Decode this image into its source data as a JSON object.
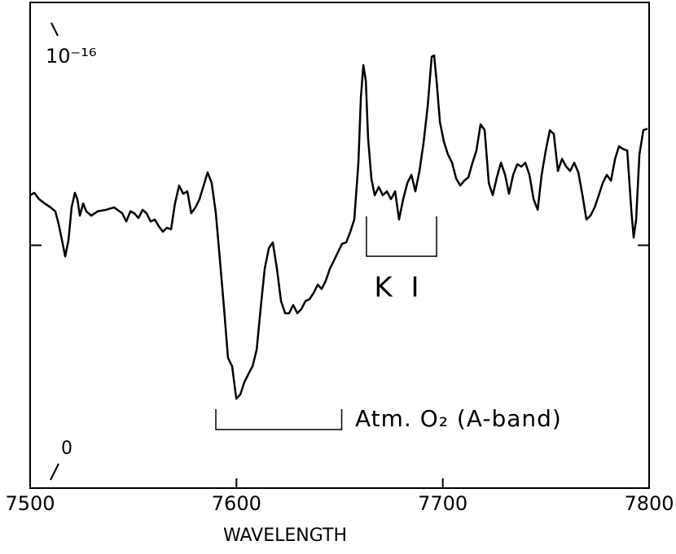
{
  "chart_data": {
    "type": "line",
    "x_label": "WAVELENGTH",
    "color": "#000000",
    "xlim": [
      7500,
      7800
    ],
    "xticks": [
      7500,
      7600,
      7700,
      7800
    ],
    "ylim": [
      0,
      1e-16
    ],
    "yticks": [
      0,
      {
        "value": 1e-16,
        "label": "10⁻¹⁶"
      }
    ],
    "y_minor_ticks": [
      5e-17
    ],
    "annotations": [
      {
        "text": "K I",
        "x": [
          7663,
          7697
        ]
      },
      {
        "text": "Atm. O₂ (A-band)",
        "x": [
          7590,
          7651
        ]
      }
    ],
    "x": [
      7500.0,
      7502.0,
      7504.3,
      7507.1,
      7509.9,
      7512.2,
      7513.8,
      7515.4,
      7517.0,
      7518.6,
      7520.1,
      7521.7,
      7522.9,
      7524.1,
      7525.7,
      7527.2,
      7529.6,
      7532.8,
      7536.7,
      7540.7,
      7544.6,
      7546.6,
      7548.6,
      7550.5,
      7552.5,
      7554.5,
      7556.4,
      7558.4,
      7560.4,
      7562.4,
      7564.3,
      7566.3,
      7568.3,
      7570.2,
      7572.2,
      7574.2,
      7576.2,
      7578.1,
      7580.1,
      7582.1,
      7584.1,
      7586.0,
      7588.0,
      7590.0,
      7592.0,
      7594.0,
      7595.9,
      7597.9,
      7599.9,
      7601.9,
      7603.8,
      7605.8,
      7607.8,
      7609.8,
      7611.7,
      7613.7,
      7615.7,
      7617.6,
      7619.6,
      7621.6,
      7623.6,
      7625.5,
      7627.5,
      7629.5,
      7631.5,
      7633.4,
      7635.4,
      7637.4,
      7639.4,
      7641.3,
      7643.3,
      7645.3,
      7647.3,
      7649.2,
      7651.2,
      7653.2,
      7655.2,
      7657.1,
      7659.1,
      7660.3,
      7661.5,
      7662.7,
      7663.8,
      7665.4,
      7667.0,
      7669.0,
      7670.9,
      7672.9,
      7674.9,
      7676.9,
      7678.8,
      7680.8,
      7682.8,
      7684.8,
      7686.7,
      7688.7,
      7690.7,
      7692.7,
      7694.6,
      7695.8,
      7697.0,
      7698.6,
      7700.6,
      7702.5,
      7704.5,
      7706.5,
      7708.5,
      7710.4,
      7712.4,
      7714.4,
      7716.3,
      7718.3,
      7720.3,
      7722.3,
      7724.2,
      7726.2,
      7728.2,
      7730.2,
      7732.1,
      7734.1,
      7736.1,
      7738.1,
      7740.0,
      7742.0,
      7744.0,
      7746.0,
      7747.9,
      7749.9,
      7751.9,
      7753.8,
      7755.8,
      7757.8,
      7759.8,
      7761.7,
      7763.7,
      7765.7,
      7767.7,
      7769.6,
      7771.6,
      7773.6,
      7775.6,
      7777.5,
      7779.5,
      7781.5,
      7783.5,
      7785.4,
      7787.4,
      7789.4,
      7791.4,
      7792.5,
      7793.7,
      7795.3,
      7797.2,
      7799.2
    ],
    "values": [
      6.03e-17,
      6.08e-17,
      5.95e-17,
      5.86e-17,
      5.78e-17,
      5.7e-17,
      5.44e-17,
      5.11e-17,
      4.77e-17,
      5.11e-17,
      5.78e-17,
      6.08e-17,
      5.95e-17,
      5.61e-17,
      5.86e-17,
      5.7e-17,
      5.61e-17,
      5.7e-17,
      5.73e-17,
      5.78e-17,
      5.66e-17,
      5.49e-17,
      5.7e-17,
      5.66e-17,
      5.56e-17,
      5.73e-17,
      5.66e-17,
      5.49e-17,
      5.53e-17,
      5.39e-17,
      5.28e-17,
      5.36e-17,
      5.33e-17,
      5.86e-17,
      6.23e-17,
      6.06e-17,
      6.11e-17,
      5.66e-17,
      5.78e-17,
      5.95e-17,
      6.23e-17,
      6.5e-17,
      6.28e-17,
      5.66e-17,
      4.69e-17,
      3.69e-17,
      2.68e-17,
      2.51e-17,
      1.84e-17,
      1.93e-17,
      2.18e-17,
      2.35e-17,
      2.51e-17,
      2.85e-17,
      3.69e-17,
      4.52e-17,
      4.94e-17,
      5.06e-17,
      4.52e-17,
      3.85e-17,
      3.6e-17,
      3.6e-17,
      3.77e-17,
      3.6e-17,
      3.69e-17,
      3.85e-17,
      3.89e-17,
      4.02e-17,
      4.19e-17,
      4.1e-17,
      4.27e-17,
      4.52e-17,
      4.69e-17,
      4.86e-17,
      5.03e-17,
      5.06e-17,
      5.28e-17,
      5.53e-17,
      6.7e-17,
      8.04e-17,
      8.71e-17,
      8.38e-17,
      7.2e-17,
      6.37e-17,
      6.03e-17,
      6.2e-17,
      6.03e-17,
      6.11e-17,
      5.95e-17,
      6.11e-17,
      5.53e-17,
      5.95e-17,
      6.28e-17,
      6.45e-17,
      6.11e-17,
      6.53e-17,
      7.12e-17,
      7.87e-17,
      8.88e-17,
      8.91e-17,
      8.38e-17,
      7.54e-17,
      7.12e-17,
      6.87e-17,
      6.7e-17,
      6.37e-17,
      6.23e-17,
      6.33e-17,
      6.4e-17,
      6.7e-17,
      6.95e-17,
      7.49e-17,
      7.37e-17,
      6.28e-17,
      6.03e-17,
      6.4e-17,
      6.7e-17,
      6.45e-17,
      6.06e-17,
      6.45e-17,
      6.67e-17,
      6.62e-17,
      6.7e-17,
      6.45e-17,
      5.95e-17,
      5.73e-17,
      6.45e-17,
      6.95e-17,
      7.37e-17,
      7.29e-17,
      6.53e-17,
      6.78e-17,
      6.62e-17,
      6.53e-17,
      6.7e-17,
      6.5e-17,
      6.03e-17,
      5.53e-17,
      5.61e-17,
      5.78e-17,
      6.03e-17,
      6.28e-17,
      6.45e-17,
      6.33e-17,
      6.78e-17,
      7.04e-17,
      6.98e-17,
      6.95e-17,
      5.7e-17,
      5.16e-17,
      5.53e-17,
      6.87e-17,
      7.37e-17,
      7.4e-17
    ]
  }
}
